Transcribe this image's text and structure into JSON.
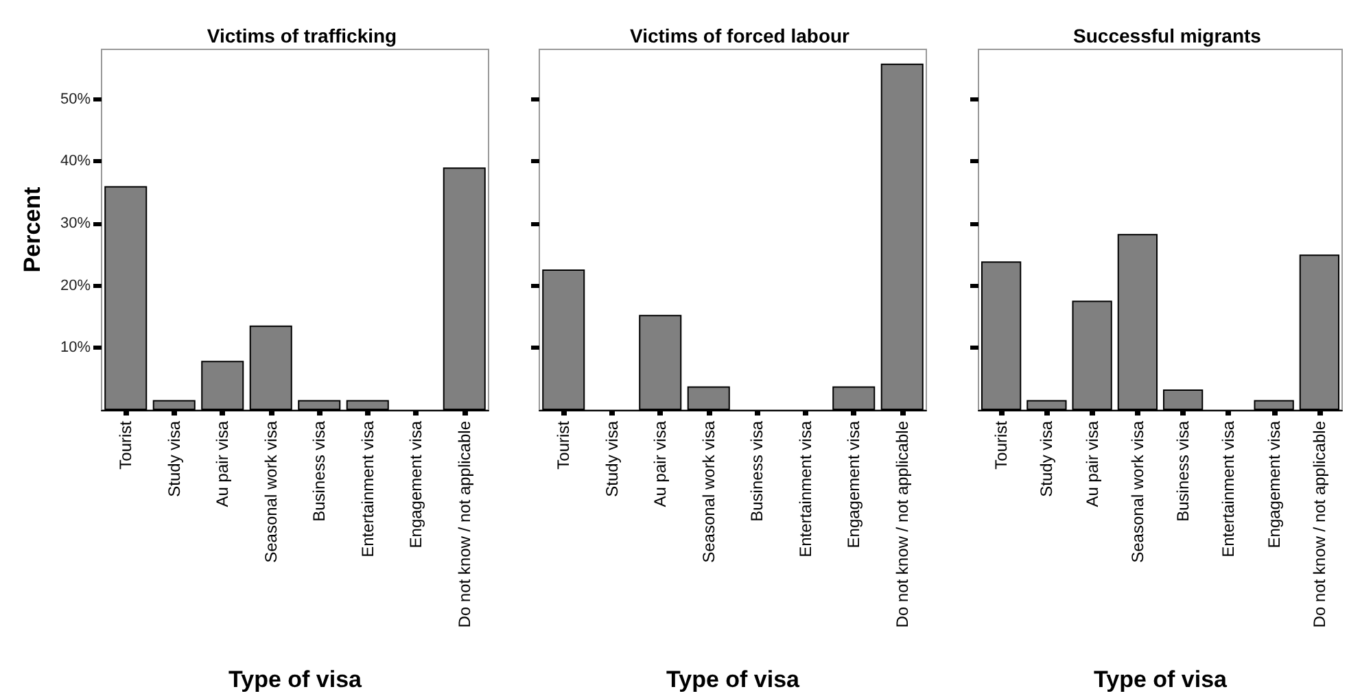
{
  "chart_data": [
    {
      "type": "bar",
      "title": "Victims of trafficking",
      "xlabel": "Type of visa",
      "ylabel": "Percent",
      "categories": [
        "Tourist",
        "Study visa",
        "Au pair visa",
        "Seasonal work visa",
        "Business visa",
        "Entertainment visa",
        "Engagement visa",
        "Do not know / not applicable"
      ],
      "values": [
        36,
        1.6,
        7.9,
        13.6,
        1.6,
        1.6,
        0,
        39
      ],
      "color": "#808080",
      "ylim": [
        0,
        58
      ],
      "yticks": [
        {
          "value": 10,
          "label": "10%"
        },
        {
          "value": 20,
          "label": "20%"
        },
        {
          "value": 30,
          "label": "30%"
        },
        {
          "value": 40,
          "label": "40%"
        },
        {
          "value": 50,
          "label": "50%"
        }
      ],
      "grid": false
    },
    {
      "type": "bar",
      "title": "Victims of forced labour",
      "xlabel": "Type of visa",
      "categories": [
        "Tourist",
        "Study visa",
        "Au pair visa",
        "Seasonal work visa",
        "Business visa",
        "Entertainment visa",
        "Engagement visa",
        "Do not know / not applicable"
      ],
      "values": [
        22.6,
        0,
        15.3,
        3.8,
        0,
        0,
        3.8,
        55.7
      ],
      "color": "#808080",
      "ylim": [
        0,
        58
      ],
      "yticks": [
        {
          "value": 10,
          "label": null
        },
        {
          "value": 20,
          "label": null
        },
        {
          "value": 30,
          "label": null
        },
        {
          "value": 40,
          "label": null
        },
        {
          "value": 50,
          "label": null
        }
      ],
      "tick_labels": "x",
      "grid": false
    },
    {
      "type": "bar",
      "title": "Successful migrants",
      "xlabel": "Type of visa",
      "categories": [
        "Tourist",
        "Study visa",
        "Au pair visa",
        "Seasonal work visa",
        "Business visa",
        "Entertainment visa",
        "Engagement visa",
        "Do not know / not applicable"
      ],
      "values": [
        23.9,
        1.6,
        17.6,
        28.3,
        3.3,
        0,
        1.6,
        25
      ],
      "color": "#808080",
      "ylim": [
        0,
        58
      ],
      "yticks": [
        {
          "value": 10,
          "label": null
        },
        {
          "value": 20,
          "label": null
        },
        {
          "value": 30,
          "label": null
        },
        {
          "value": 40,
          "label": null
        },
        {
          "value": 50,
          "label": null
        }
      ],
      "tick_labels": "x",
      "grid": false
    }
  ]
}
